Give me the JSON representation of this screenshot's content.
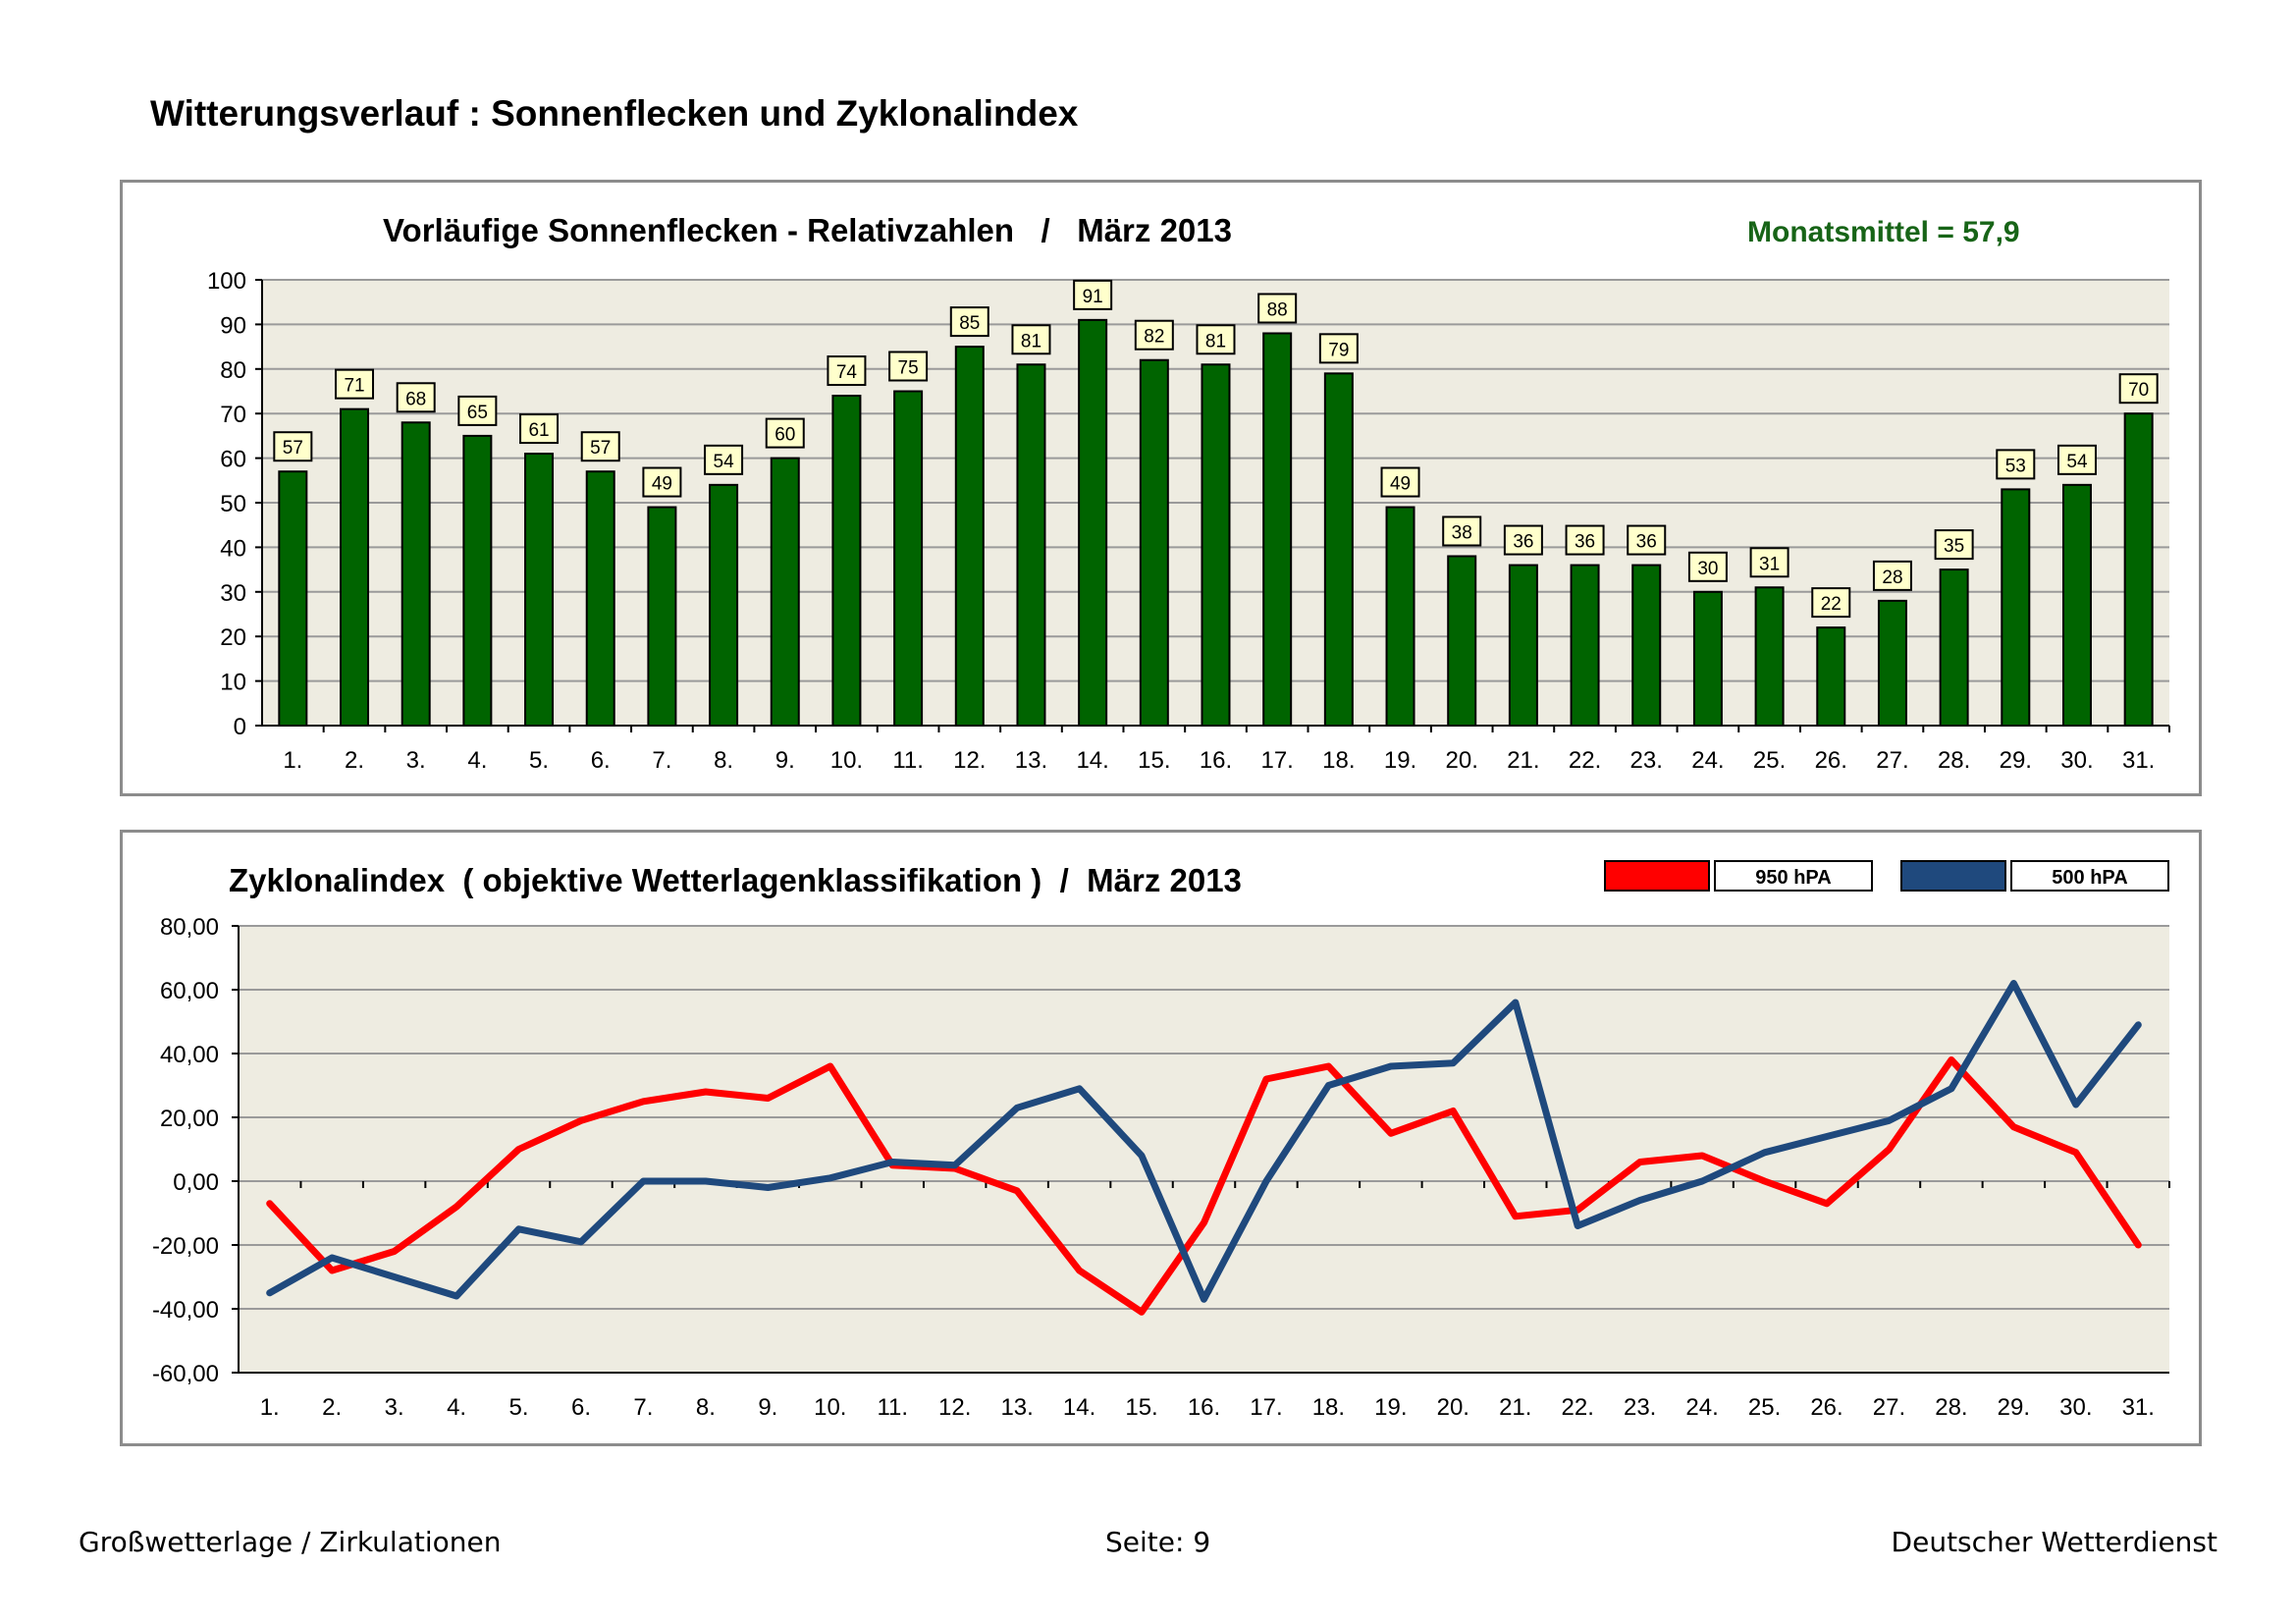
{
  "page": {
    "title": "Witterungsverlauf : Sonnenflecken und Zyklonalindex",
    "footer_left": "Großwetterlage / Zirkulationen",
    "footer_center": "Seite: 9",
    "footer_right": "Deutscher Wetterdienst"
  },
  "colors": {
    "bar_fill": "#006400",
    "plot_bg": "#eeece1",
    "grid": "#9a9a9a",
    "label_box": "#ffffcc",
    "mean_text": "#176417",
    "series_950": "#ff0000",
    "series_500": "#1f497d"
  },
  "chart_data": [
    {
      "type": "bar",
      "title": "Vorläufige Sonnenflecken - Relativzahlen   /   März 2013",
      "annotation": "Monatsmittel = 57,9",
      "categories": [
        "1.",
        "2.",
        "3.",
        "4.",
        "5.",
        "6.",
        "7.",
        "8.",
        "9.",
        "10.",
        "11.",
        "12.",
        "13.",
        "14.",
        "15.",
        "16.",
        "17.",
        "18.",
        "19.",
        "20.",
        "21.",
        "22.",
        "23.",
        "24.",
        "25.",
        "26.",
        "27.",
        "28.",
        "29.",
        "30.",
        "31."
      ],
      "values": [
        57,
        71,
        68,
        65,
        61,
        57,
        49,
        54,
        60,
        74,
        75,
        85,
        81,
        91,
        82,
        81,
        88,
        79,
        49,
        38,
        36,
        36,
        36,
        30,
        31,
        22,
        28,
        35,
        53,
        54,
        70
      ],
      "ylim": [
        0,
        100
      ],
      "yticks": [
        0,
        10,
        20,
        30,
        40,
        50,
        60,
        70,
        80,
        90,
        100
      ],
      "ytick_labels": [
        "0",
        "10",
        "20",
        "30",
        "40",
        "50",
        "60",
        "70",
        "80",
        "90",
        "100"
      ],
      "grid": true,
      "data_labels": true
    },
    {
      "type": "line",
      "title": "Zyklonalindex  ( objektive Wetterlagenklassifikation )  /  März 2013",
      "categories": [
        "1.",
        "2.",
        "3.",
        "4.",
        "5.",
        "6.",
        "7.",
        "8.",
        "9.",
        "10.",
        "11.",
        "12.",
        "13.",
        "14.",
        "15.",
        "16.",
        "17.",
        "18.",
        "19.",
        "20.",
        "21.",
        "22.",
        "23.",
        "24.",
        "25.",
        "26.",
        "27.",
        "28.",
        "29.",
        "30.",
        "31."
      ],
      "series": [
        {
          "name": "950 hPA",
          "color_key": "series_950",
          "values": [
            -7,
            -28,
            -22,
            -8,
            10,
            19,
            25,
            28,
            26,
            36,
            5,
            4,
            -3,
            -28,
            -41,
            -13,
            32,
            36,
            15,
            22,
            -11,
            -9,
            6,
            8,
            0,
            -7,
            10,
            38,
            17,
            9,
            -20
          ]
        },
        {
          "name": "500 hPA",
          "color_key": "series_500",
          "values": [
            -35,
            -24,
            -30,
            -36,
            -15,
            -19,
            0,
            0,
            -2,
            1,
            6,
            5,
            23,
            29,
            8,
            -37,
            0,
            30,
            36,
            37,
            56,
            -14,
            -6,
            0,
            9,
            14,
            19,
            29,
            62,
            24,
            49
          ]
        }
      ],
      "ylim": [
        -60,
        80
      ],
      "yticks": [
        -60,
        -40,
        -20,
        0,
        20,
        40,
        60,
        80
      ],
      "ytick_labels": [
        "-60,00",
        "-40,00",
        "-20,00",
        "0,00",
        "20,00",
        "40,00",
        "60,00",
        "80,00"
      ],
      "grid": true,
      "legend_position": "top-right"
    }
  ]
}
